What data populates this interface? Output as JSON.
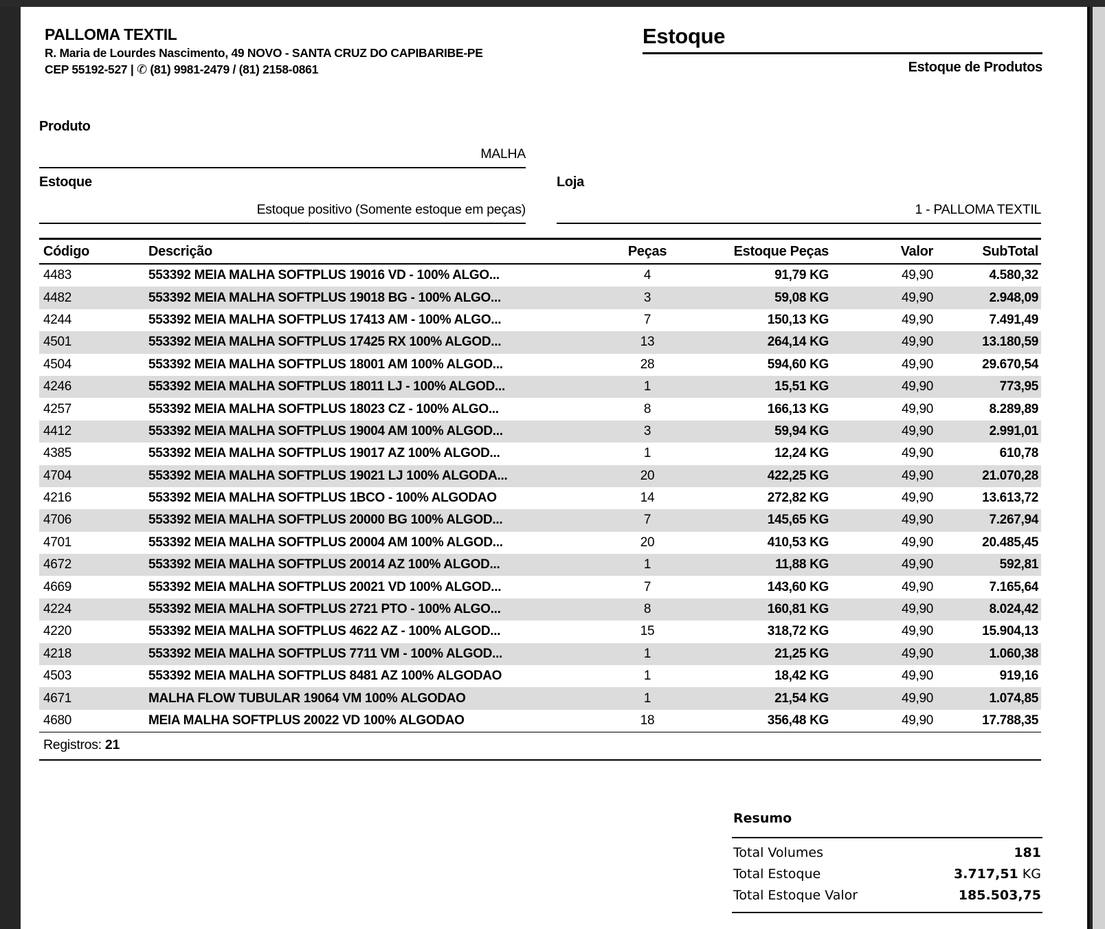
{
  "company": {
    "name": "PALLOMA TEXTIL",
    "address": "R. Maria de Lourdes Nascimento, 49 NOVO - SANTA CRUZ DO CAPIBARIBE-PE",
    "cep": "CEP 55192-527",
    "separator": "|",
    "phone_icon_glyph": "✆",
    "phones": "(81) 9981-2479 / (81) 2158-0861"
  },
  "report": {
    "title": "Estoque",
    "subtitle": "Estoque de Produtos"
  },
  "filters": {
    "produto": {
      "label": "Produto",
      "value": "MALHA"
    },
    "estoque": {
      "label": "Estoque",
      "value": "Estoque positivo (Somente estoque em peças)"
    },
    "loja": {
      "label": "Loja",
      "value": "1 - PALLOMA TEXTIL"
    }
  },
  "table": {
    "columns": [
      "Código",
      "Descrição",
      "Peças",
      "Estoque Peças",
      "Valor",
      "SubTotal"
    ],
    "rows": [
      {
        "codigo": "4483",
        "descricao": "553392 MEIA MALHA SOFTPLUS 19016 VD - 100% ALGO...",
        "pecas": "4",
        "estoque": "91,79 KG",
        "valor": "49,90",
        "subtotal": "4.580,32"
      },
      {
        "codigo": "4482",
        "descricao": "553392 MEIA MALHA SOFTPLUS 19018 BG - 100% ALGO...",
        "pecas": "3",
        "estoque": "59,08 KG",
        "valor": "49,90",
        "subtotal": "2.948,09"
      },
      {
        "codigo": "4244",
        "descricao": "553392 MEIA MALHA SOFTPLUS 17413 AM - 100% ALGO...",
        "pecas": "7",
        "estoque": "150,13 KG",
        "valor": "49,90",
        "subtotal": "7.491,49"
      },
      {
        "codigo": "4501",
        "descricao": "553392 MEIA MALHA SOFTPLUS 17425 RX 100% ALGOD...",
        "pecas": "13",
        "estoque": "264,14 KG",
        "valor": "49,90",
        "subtotal": "13.180,59"
      },
      {
        "codigo": "4504",
        "descricao": "553392 MEIA MALHA SOFTPLUS 18001 AM 100% ALGOD...",
        "pecas": "28",
        "estoque": "594,60 KG",
        "valor": "49,90",
        "subtotal": "29.670,54"
      },
      {
        "codigo": "4246",
        "descricao": "553392 MEIA MALHA SOFTPLUS 18011 LJ - 100% ALGOD...",
        "pecas": "1",
        "estoque": "15,51 KG",
        "valor": "49,90",
        "subtotal": "773,95"
      },
      {
        "codigo": "4257",
        "descricao": "553392 MEIA MALHA SOFTPLUS 18023 CZ - 100% ALGO...",
        "pecas": "8",
        "estoque": "166,13 KG",
        "valor": "49,90",
        "subtotal": "8.289,89"
      },
      {
        "codigo": "4412",
        "descricao": "553392 MEIA MALHA SOFTPLUS 19004 AM 100% ALGOD...",
        "pecas": "3",
        "estoque": "59,94 KG",
        "valor": "49,90",
        "subtotal": "2.991,01"
      },
      {
        "codigo": "4385",
        "descricao": "553392 MEIA MALHA SOFTPLUS 19017 AZ 100% ALGOD...",
        "pecas": "1",
        "estoque": "12,24 KG",
        "valor": "49,90",
        "subtotal": "610,78"
      },
      {
        "codigo": "4704",
        "descricao": "553392 MEIA MALHA SOFTPLUS 19021 LJ 100% ALGODA...",
        "pecas": "20",
        "estoque": "422,25 KG",
        "valor": "49,90",
        "subtotal": "21.070,28"
      },
      {
        "codigo": "4216",
        "descricao": "553392 MEIA MALHA SOFTPLUS 1BCO - 100% ALGODAO",
        "pecas": "14",
        "estoque": "272,82 KG",
        "valor": "49,90",
        "subtotal": "13.613,72"
      },
      {
        "codigo": "4706",
        "descricao": "553392 MEIA MALHA SOFTPLUS 20000 BG 100% ALGOD...",
        "pecas": "7",
        "estoque": "145,65 KG",
        "valor": "49,90",
        "subtotal": "7.267,94"
      },
      {
        "codigo": "4701",
        "descricao": "553392 MEIA MALHA SOFTPLUS 20004 AM 100% ALGOD...",
        "pecas": "20",
        "estoque": "410,53 KG",
        "valor": "49,90",
        "subtotal": "20.485,45"
      },
      {
        "codigo": "4672",
        "descricao": "553392 MEIA MALHA SOFTPLUS 20014 AZ 100% ALGOD...",
        "pecas": "1",
        "estoque": "11,88 KG",
        "valor": "49,90",
        "subtotal": "592,81"
      },
      {
        "codigo": "4669",
        "descricao": "553392 MEIA MALHA SOFTPLUS 20021 VD 100% ALGOD...",
        "pecas": "7",
        "estoque": "143,60 KG",
        "valor": "49,90",
        "subtotal": "7.165,64"
      },
      {
        "codigo": "4224",
        "descricao": "553392 MEIA MALHA SOFTPLUS 2721 PTO - 100% ALGO...",
        "pecas": "8",
        "estoque": "160,81 KG",
        "valor": "49,90",
        "subtotal": "8.024,42"
      },
      {
        "codigo": "4220",
        "descricao": "553392 MEIA MALHA SOFTPLUS 4622 AZ - 100% ALGOD...",
        "pecas": "15",
        "estoque": "318,72 KG",
        "valor": "49,90",
        "subtotal": "15.904,13"
      },
      {
        "codigo": "4218",
        "descricao": "553392 MEIA MALHA SOFTPLUS 7711 VM - 100% ALGOD...",
        "pecas": "1",
        "estoque": "21,25 KG",
        "valor": "49,90",
        "subtotal": "1.060,38"
      },
      {
        "codigo": "4503",
        "descricao": "553392 MEIA MALHA SOFTPLUS 8481 AZ 100% ALGODAO",
        "pecas": "1",
        "estoque": "18,42 KG",
        "valor": "49,90",
        "subtotal": "919,16"
      },
      {
        "codigo": "4671",
        "descricao": "MALHA FLOW TUBULAR 19064 VM 100% ALGODAO",
        "pecas": "1",
        "estoque": "21,54 KG",
        "valor": "49,90",
        "subtotal": "1.074,85"
      },
      {
        "codigo": "4680",
        "descricao": "MEIA MALHA SOFTPLUS 20022 VD 100% ALGODAO",
        "pecas": "18",
        "estoque": "356,48 KG",
        "valor": "49,90",
        "subtotal": "17.788,35"
      }
    ],
    "registros_label": "Registros:",
    "registros_value": "21"
  },
  "resumo": {
    "title": "Resumo",
    "rows": [
      {
        "label": "Total Volumes",
        "value": "181",
        "suffix": ""
      },
      {
        "label": "Total Estoque",
        "value": "3.717,51",
        "suffix": " KG"
      },
      {
        "label": "Total Estoque Valor",
        "value": "185.503,75",
        "suffix": ""
      }
    ]
  }
}
